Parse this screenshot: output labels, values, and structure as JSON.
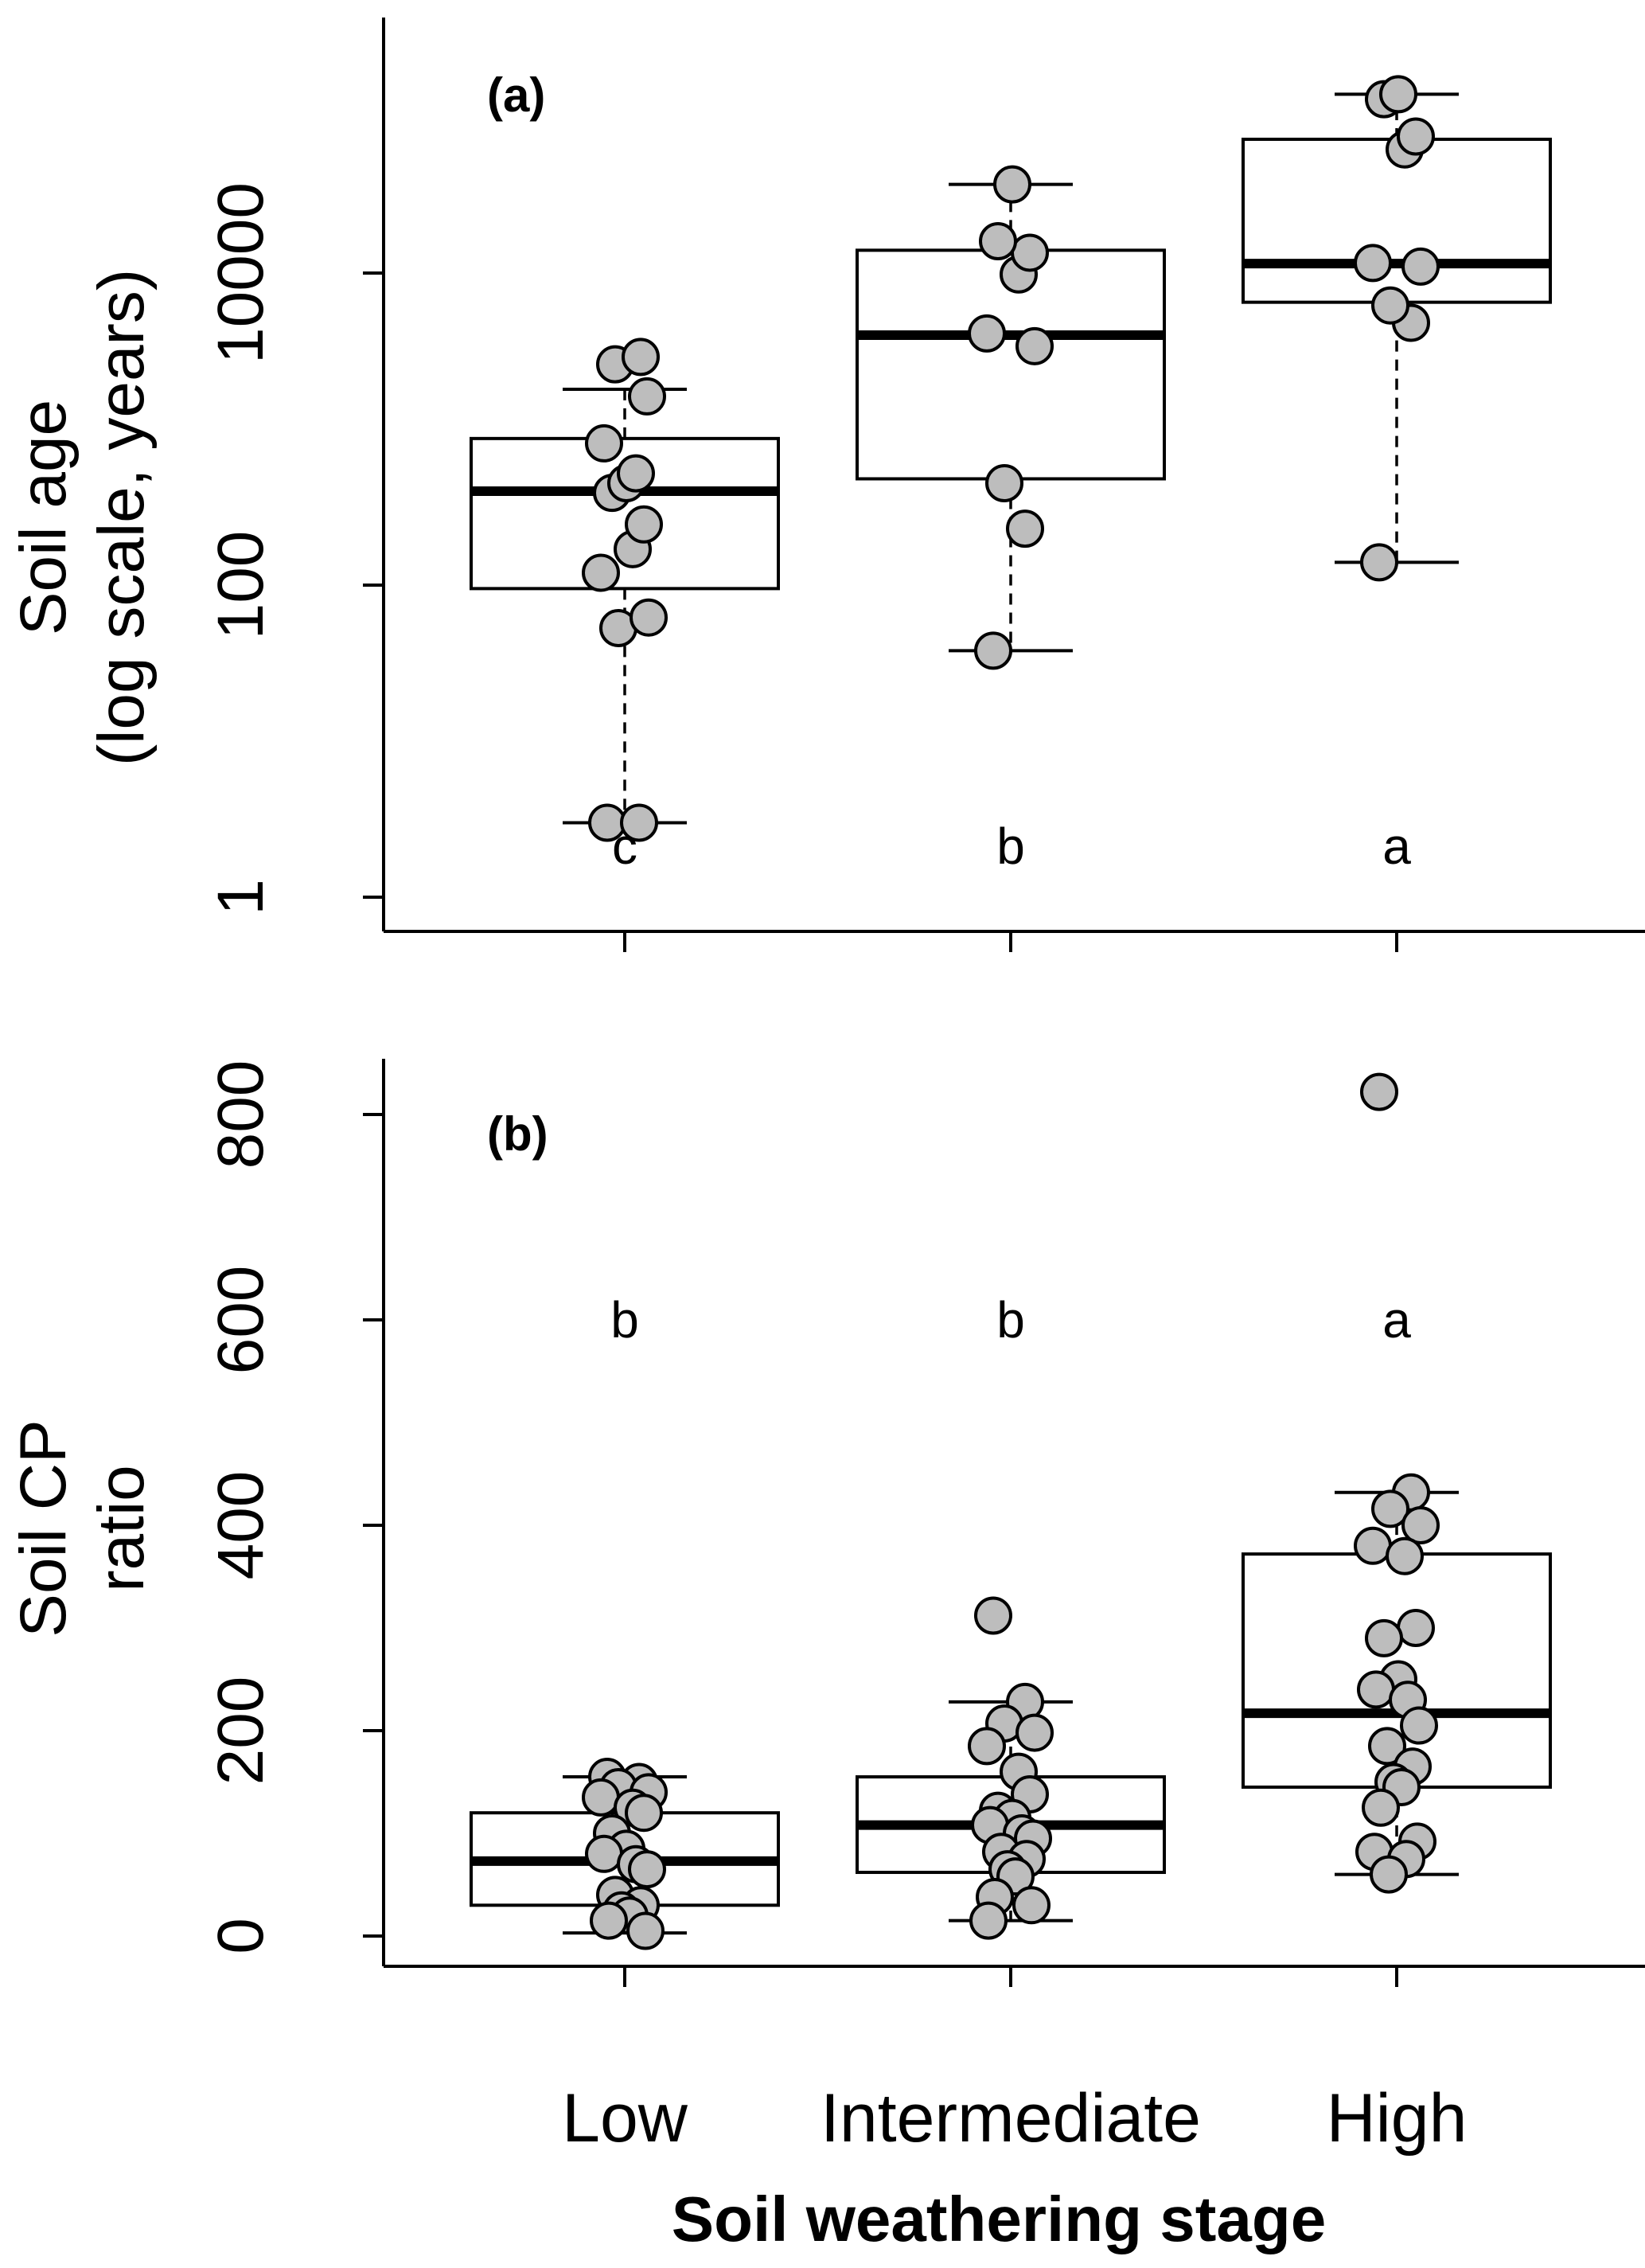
{
  "chart_data": [
    {
      "type": "box",
      "panel_label": "(a)",
      "ylabel": [
        "Soil age",
        "(log scale, years)"
      ],
      "y_scale": "log10",
      "ylim": [
        1,
        200000
      ],
      "y_ticks": [
        1,
        100,
        10000
      ],
      "y_tick_labels": [
        "1",
        "100",
        "10000"
      ],
      "categories": [
        "Low",
        "Intermediate",
        "High"
      ],
      "groups": [
        {
          "category": "Low",
          "letter": "c",
          "whisker_low": 3,
          "q1": 95,
          "median": 400,
          "q3": 870,
          "whisker_high": 1800,
          "points": [
            3,
            3,
            53,
            62,
            120,
            170,
            245,
            390,
            450,
            810,
            520,
            1620,
            2600,
            2900
          ]
        },
        {
          "category": "Intermediate",
          "letter": "b",
          "whisker_low": 38,
          "q1": 480,
          "median": 4000,
          "q3": 14000,
          "whisker_high": 37000,
          "points": [
            38,
            230,
            450,
            3400,
            4100,
            9800,
            13500,
            16000,
            37000
          ]
        },
        {
          "category": "High",
          "letter": "a",
          "whisker_low": 140,
          "q1": 6500,
          "median": 11500,
          "q3": 72000,
          "whisker_high": 140000,
          "points": [
            140,
            4800,
            6200,
            11000,
            11600,
            62000,
            75000,
            130000,
            140000
          ]
        }
      ]
    },
    {
      "type": "box",
      "panel_label": "(b)",
      "ylabel": [
        "Soil CP",
        "ratio"
      ],
      "y_scale": "linear",
      "ylim": [
        -30,
        860
      ],
      "y_ticks": [
        0,
        200,
        400,
        600,
        800
      ],
      "y_tick_labels": [
        "0",
        "200",
        "400",
        "600",
        "800"
      ],
      "categories": [
        "Low",
        "Intermediate",
        "High"
      ],
      "groups": [
        {
          "category": "Low",
          "letter": "b",
          "whisker_low": 3,
          "q1": 30,
          "median": 73,
          "q3": 120,
          "whisker_high": 155,
          "points": [
            155,
            150,
            145,
            140,
            135,
            125,
            120,
            100,
            85,
            80,
            70,
            65,
            40,
            30,
            25,
            20,
            15,
            5
          ]
        },
        {
          "category": "Intermediate",
          "letter": "b",
          "whisker_low": 15,
          "q1": 62,
          "median": 108,
          "q3": 155,
          "whisker_high": 228,
          "points": [
            312,
            228,
            207,
            198,
            185,
            160,
            138,
            122,
            115,
            108,
            100,
            95,
            82,
            75,
            65,
            58,
            38,
            30,
            15
          ]
        },
        {
          "category": "High",
          "letter": "a",
          "whisker_low": 60,
          "q1": 145,
          "median": 217,
          "q3": 372,
          "whisker_high": 432,
          "points": [
            822,
            432,
            416,
            400,
            380,
            370,
            300,
            290,
            250,
            240,
            230,
            205,
            185,
            165,
            150,
            145,
            125,
            92,
            82,
            75,
            60
          ]
        }
      ]
    }
  ],
  "xlabel": "Soil weathering stage"
}
